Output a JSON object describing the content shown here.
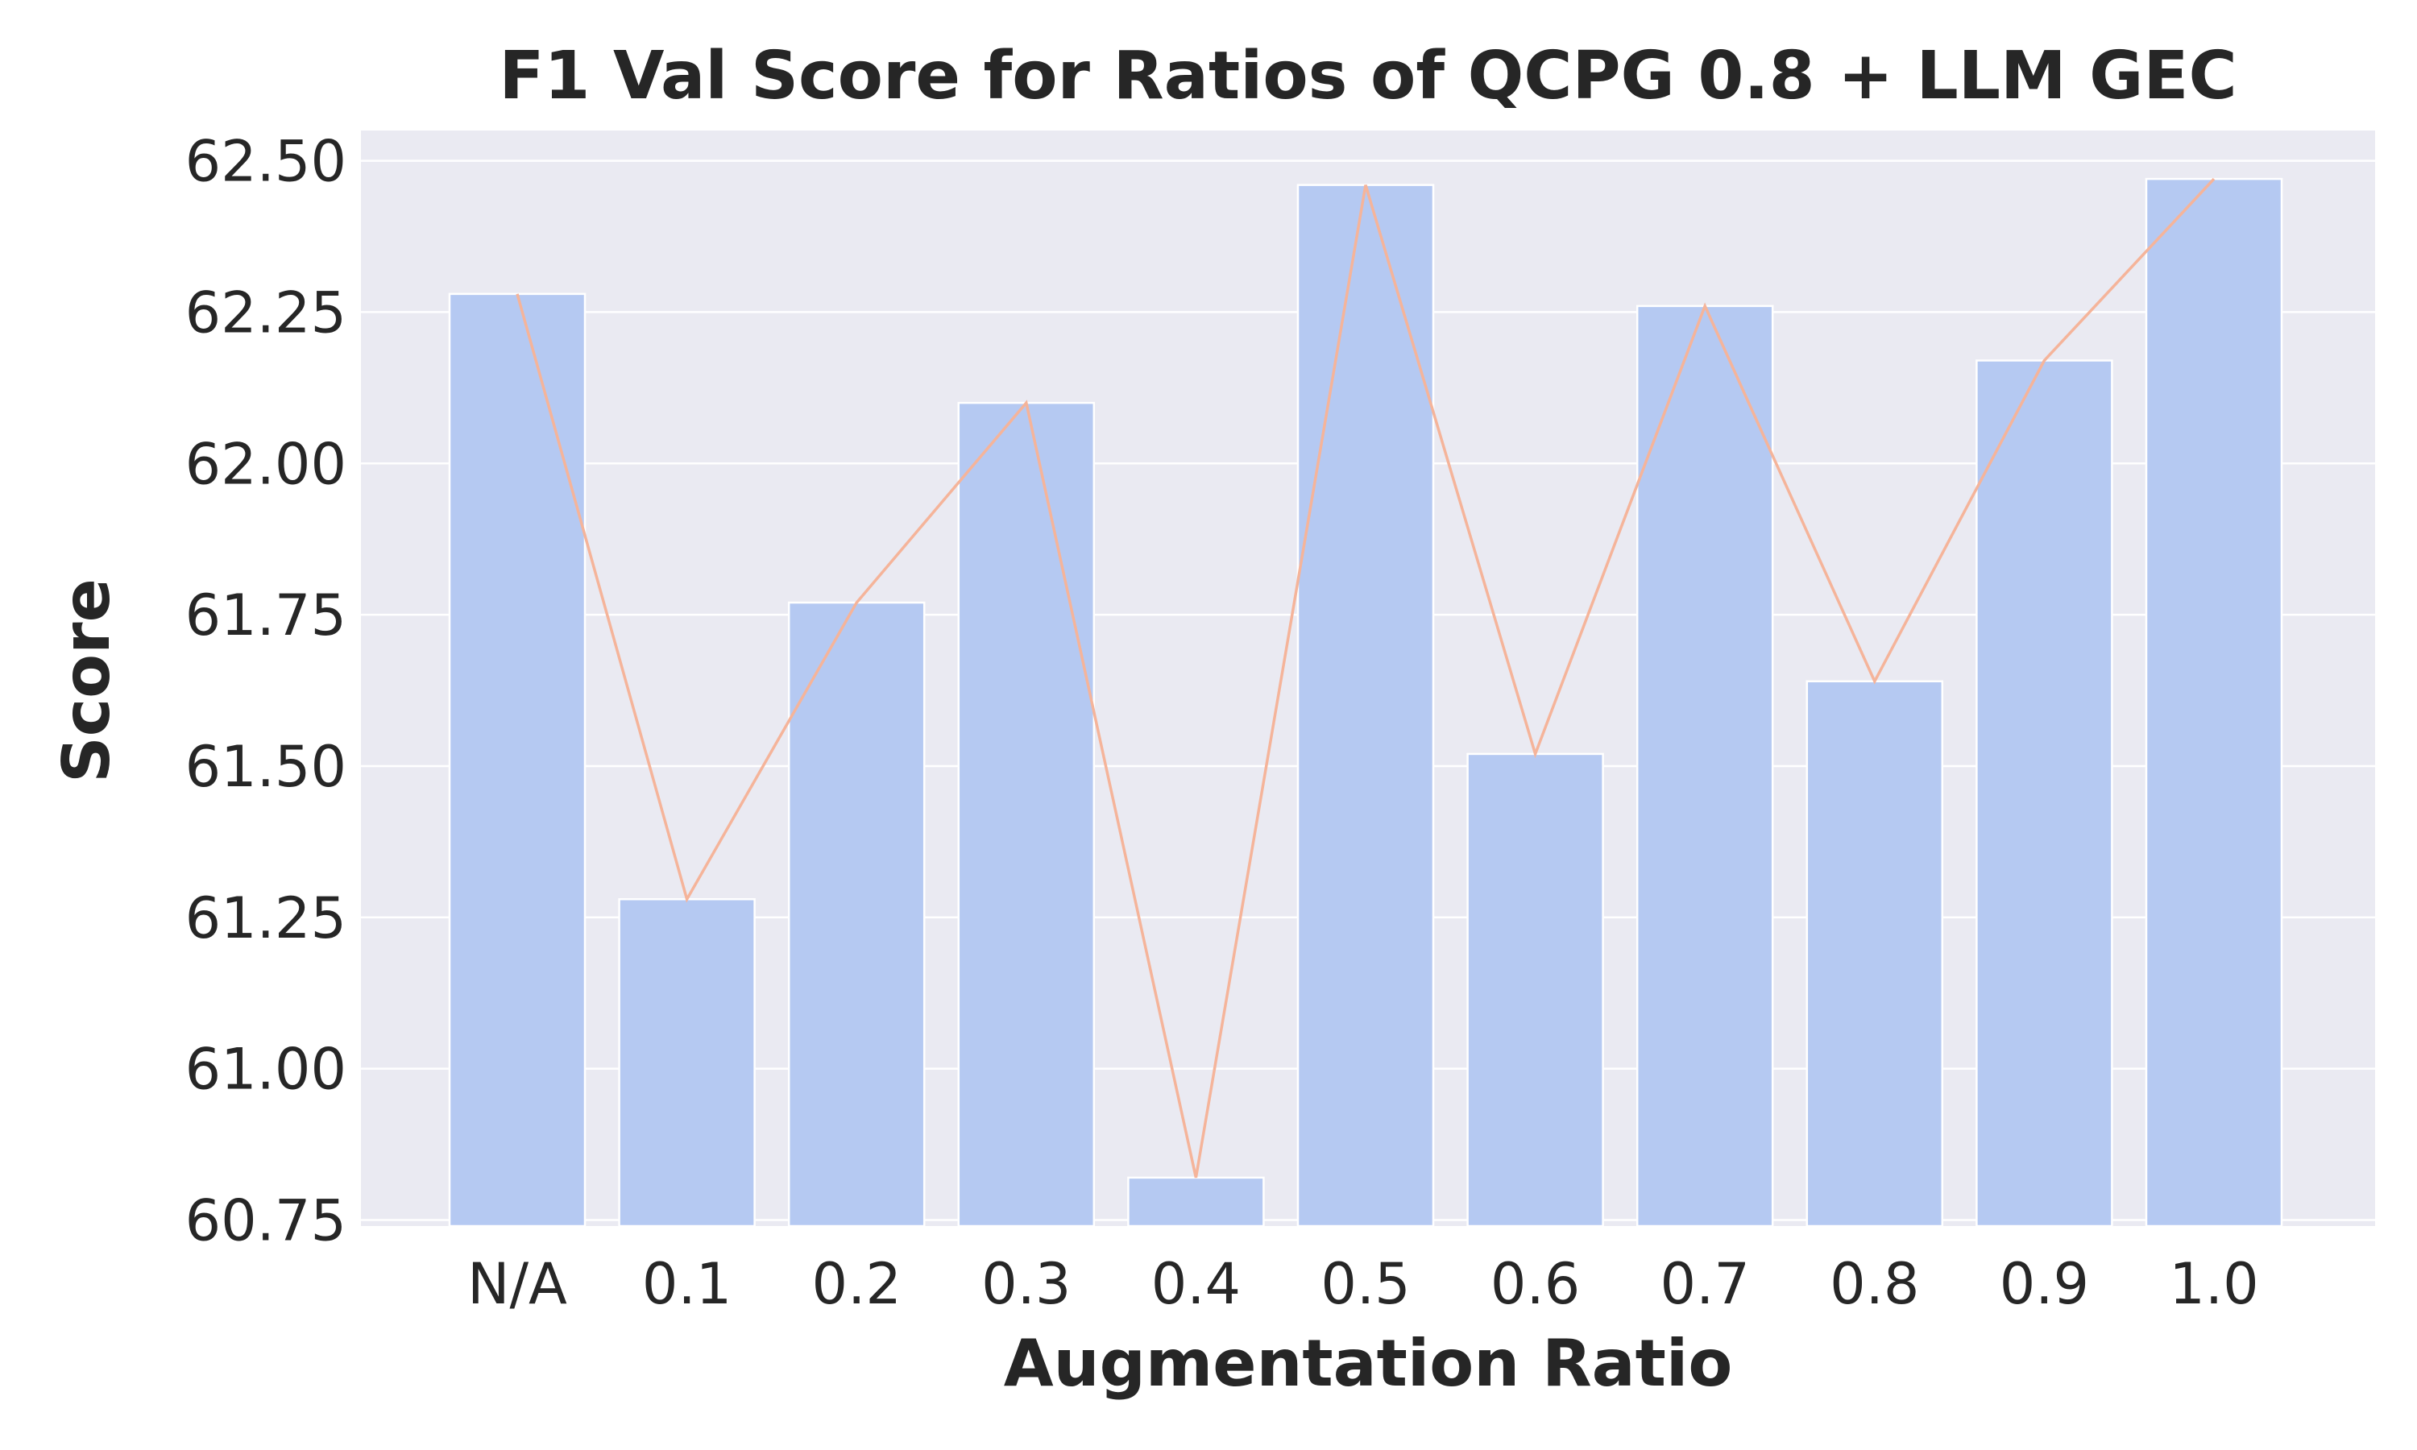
{
  "chart_data": {
    "type": "bar",
    "title": "F1 Val Score for Ratios of QCPG 0.8 + LLM GEC",
    "xlabel": "Augmentation Ratio",
    "ylabel": "Score",
    "categories": [
      "N/A",
      "0.1",
      "0.2",
      "0.3",
      "0.4",
      "0.5",
      "0.6",
      "0.7",
      "0.8",
      "0.9",
      "1.0"
    ],
    "values": [
      62.28,
      61.28,
      61.77,
      62.1,
      60.82,
      62.46,
      61.52,
      62.26,
      61.64,
      62.17,
      62.47
    ],
    "line_overlay": true,
    "ylim": [
      60.74,
      62.55
    ],
    "yticks": [
      60.75,
      61.0,
      61.25,
      61.5,
      61.75,
      62.0,
      62.25,
      62.5
    ],
    "ytick_labels": [
      "60.75",
      "61.00",
      "61.25",
      "61.50",
      "61.75",
      "62.00",
      "62.25",
      "62.50"
    ],
    "grid": true,
    "colors": {
      "background": "#eaeaf2",
      "bar": "#b5c9f2",
      "line": "#f5b49a",
      "grid": "#ffffff",
      "text": "#262626"
    }
  }
}
